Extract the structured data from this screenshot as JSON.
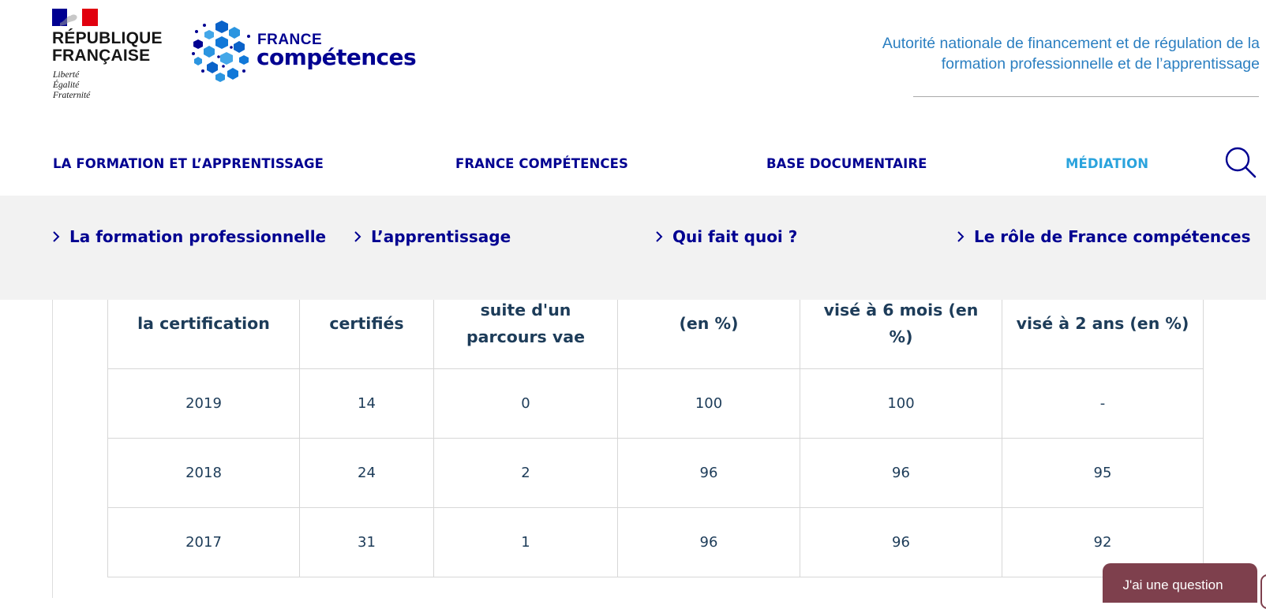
{
  "header": {
    "republic_line1": "RÉPUBLIQUE",
    "republic_line2": "FRANÇAISE",
    "motto_liberte": "Liberté",
    "motto_egalite": "Égalité",
    "motto_fraternite": "Fraternité",
    "brand_small": "FRANCE",
    "brand_large": "compétences",
    "tagline_line1": "Autorité nationale de financement et de régulation de la",
    "tagline_line2": "formation professionnelle et de l’apprentissage"
  },
  "main_nav": [
    {
      "label": "LA FORMATION ET L’APPRENTISSAGE",
      "active": false
    },
    {
      "label": "FRANCE COMPÉTENCES",
      "active": false
    },
    {
      "label": "BASE DOCUMENTAIRE",
      "active": false
    },
    {
      "label": "MÉDIATION",
      "active": true
    }
  ],
  "sub_nav": [
    {
      "label": "La formation professionnelle"
    },
    {
      "label": "L’apprentissage"
    },
    {
      "label": "Qui fait quoi ?"
    },
    {
      "label": "Le rôle de France compétences"
    }
  ],
  "table": {
    "headers": [
      [
        "la certification"
      ],
      [
        "certifiés"
      ],
      [
        "suite d'un",
        "parcours vae"
      ],
      [
        "(en %)"
      ],
      [
        "visé à 6 mois (en",
        "%)"
      ],
      [
        "visé à 2 ans (en %)"
      ]
    ],
    "rows": [
      [
        "2019",
        "14",
        "0",
        "100",
        "100",
        "-"
      ],
      [
        "2018",
        "24",
        "2",
        "96",
        "96",
        "95"
      ],
      [
        "2017",
        "31",
        "1",
        "96",
        "96",
        "92"
      ]
    ]
  },
  "chat": {
    "label": "J'ai une question"
  },
  "colors": {
    "navy": "#000091",
    "active_blue": "#2aa3dd",
    "tagline_blue": "#2b7fc1",
    "table_text": "#1d3c59",
    "chat_bg": "#7e404d",
    "subnav_bg": "#f2f2f2"
  }
}
